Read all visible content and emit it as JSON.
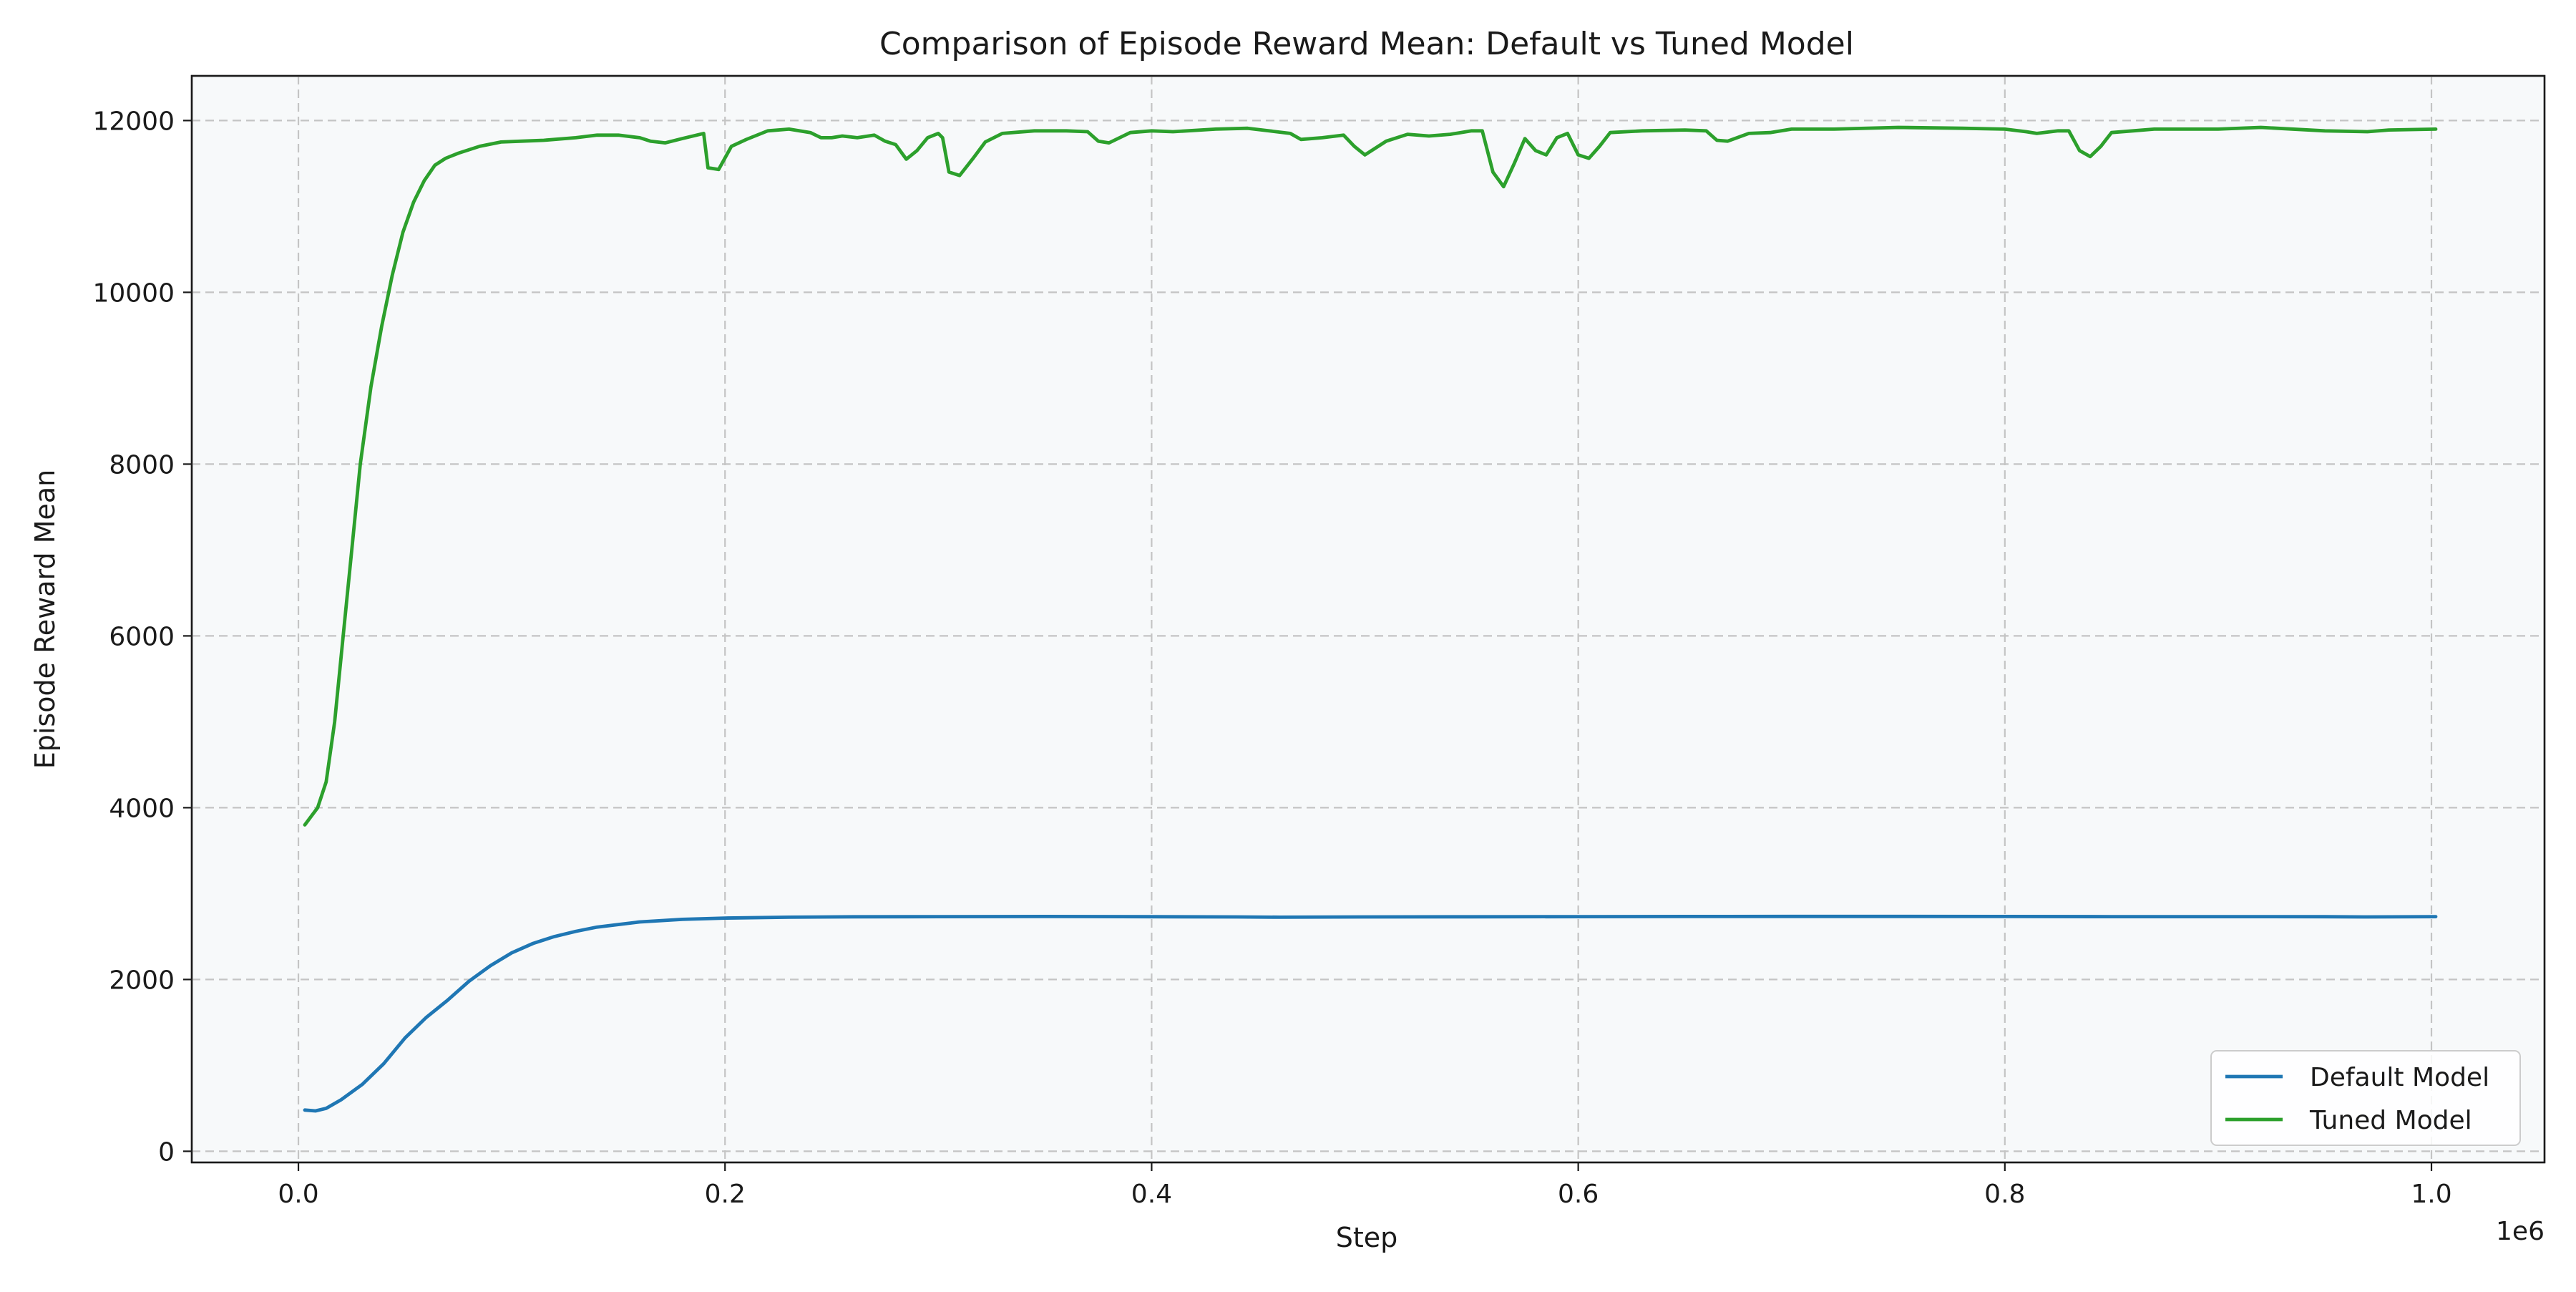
{
  "chart_data": {
    "type": "line",
    "title": "Comparison of Episode Reward Mean: Default vs Tuned Model",
    "xlabel": "Step",
    "ylabel": "Episode Reward Mean",
    "x_offset_label": "1e6",
    "xlim": [
      -0.05,
      1.053
    ],
    "ylim": [
      -130,
      12520
    ],
    "x_ticks": [
      0.0,
      0.2,
      0.4,
      0.6,
      0.8,
      1.0
    ],
    "x_tick_labels": [
      "0.0",
      "0.2",
      "0.4",
      "0.6",
      "0.8",
      "1.0"
    ],
    "y_ticks": [
      0,
      2000,
      4000,
      6000,
      8000,
      10000,
      12000
    ],
    "y_tick_labels": [
      "0",
      "2000",
      "4000",
      "6000",
      "8000",
      "10000",
      "12000"
    ],
    "grid": true,
    "legend_position": "bottom-right",
    "series": [
      {
        "name": "Default Model",
        "color": "#1f77b4",
        "points": [
          [
            0.003,
            480
          ],
          [
            0.008,
            470
          ],
          [
            0.013,
            500
          ],
          [
            0.02,
            600
          ],
          [
            0.03,
            780
          ],
          [
            0.04,
            1020
          ],
          [
            0.05,
            1320
          ],
          [
            0.06,
            1560
          ],
          [
            0.07,
            1760
          ],
          [
            0.08,
            1980
          ],
          [
            0.09,
            2160
          ],
          [
            0.1,
            2310
          ],
          [
            0.11,
            2420
          ],
          [
            0.12,
            2500
          ],
          [
            0.13,
            2560
          ],
          [
            0.14,
            2610
          ],
          [
            0.15,
            2640
          ],
          [
            0.16,
            2670
          ],
          [
            0.18,
            2700
          ],
          [
            0.2,
            2715
          ],
          [
            0.23,
            2725
          ],
          [
            0.26,
            2730
          ],
          [
            0.3,
            2732
          ],
          [
            0.35,
            2733
          ],
          [
            0.4,
            2731
          ],
          [
            0.44,
            2728
          ],
          [
            0.46,
            2725
          ],
          [
            0.5,
            2728
          ],
          [
            0.55,
            2730
          ],
          [
            0.6,
            2732
          ],
          [
            0.65,
            2733
          ],
          [
            0.7,
            2734
          ],
          [
            0.75,
            2734
          ],
          [
            0.8,
            2733
          ],
          [
            0.85,
            2732
          ],
          [
            0.9,
            2732
          ],
          [
            0.95,
            2731
          ],
          [
            0.97,
            2728
          ],
          [
            1.002,
            2732
          ]
        ]
      },
      {
        "name": "Tuned Model",
        "color": "#2ca02c",
        "points": [
          [
            0.003,
            3800
          ],
          [
            0.009,
            4000
          ],
          [
            0.013,
            4300
          ],
          [
            0.017,
            5000
          ],
          [
            0.021,
            6000
          ],
          [
            0.025,
            7000
          ],
          [
            0.029,
            8000
          ],
          [
            0.034,
            8900
          ],
          [
            0.039,
            9600
          ],
          [
            0.044,
            10200
          ],
          [
            0.049,
            10700
          ],
          [
            0.054,
            11050
          ],
          [
            0.059,
            11300
          ],
          [
            0.064,
            11480
          ],
          [
            0.069,
            11560
          ],
          [
            0.075,
            11620
          ],
          [
            0.085,
            11700
          ],
          [
            0.095,
            11750
          ],
          [
            0.105,
            11760
          ],
          [
            0.115,
            11770
          ],
          [
            0.13,
            11800
          ],
          [
            0.14,
            11830
          ],
          [
            0.15,
            11830
          ],
          [
            0.16,
            11800
          ],
          [
            0.165,
            11760
          ],
          [
            0.172,
            11740
          ],
          [
            0.18,
            11790
          ],
          [
            0.19,
            11850
          ],
          [
            0.192,
            11450
          ],
          [
            0.197,
            11430
          ],
          [
            0.203,
            11700
          ],
          [
            0.21,
            11780
          ],
          [
            0.22,
            11880
          ],
          [
            0.23,
            11900
          ],
          [
            0.24,
            11860
          ],
          [
            0.245,
            11800
          ],
          [
            0.25,
            11800
          ],
          [
            0.255,
            11820
          ],
          [
            0.262,
            11800
          ],
          [
            0.27,
            11830
          ],
          [
            0.275,
            11760
          ],
          [
            0.28,
            11720
          ],
          [
            0.285,
            11550
          ],
          [
            0.29,
            11650
          ],
          [
            0.295,
            11800
          ],
          [
            0.3,
            11850
          ],
          [
            0.302,
            11800
          ],
          [
            0.305,
            11400
          ],
          [
            0.31,
            11360
          ],
          [
            0.316,
            11550
          ],
          [
            0.322,
            11750
          ],
          [
            0.33,
            11850
          ],
          [
            0.345,
            11880
          ],
          [
            0.36,
            11880
          ],
          [
            0.37,
            11870
          ],
          [
            0.375,
            11760
          ],
          [
            0.38,
            11740
          ],
          [
            0.39,
            11860
          ],
          [
            0.4,
            11880
          ],
          [
            0.41,
            11870
          ],
          [
            0.43,
            11900
          ],
          [
            0.445,
            11910
          ],
          [
            0.455,
            11880
          ],
          [
            0.465,
            11850
          ],
          [
            0.47,
            11780
          ],
          [
            0.48,
            11800
          ],
          [
            0.49,
            11830
          ],
          [
            0.495,
            11700
          ],
          [
            0.5,
            11600
          ],
          [
            0.51,
            11760
          ],
          [
            0.52,
            11840
          ],
          [
            0.53,
            11820
          ],
          [
            0.54,
            11840
          ],
          [
            0.55,
            11880
          ],
          [
            0.555,
            11880
          ],
          [
            0.56,
            11400
          ],
          [
            0.565,
            11230
          ],
          [
            0.57,
            11500
          ],
          [
            0.575,
            11790
          ],
          [
            0.58,
            11650
          ],
          [
            0.585,
            11600
          ],
          [
            0.59,
            11800
          ],
          [
            0.595,
            11850
          ],
          [
            0.6,
            11600
          ],
          [
            0.605,
            11560
          ],
          [
            0.61,
            11700
          ],
          [
            0.615,
            11860
          ],
          [
            0.63,
            11880
          ],
          [
            0.65,
            11890
          ],
          [
            0.66,
            11880
          ],
          [
            0.665,
            11770
          ],
          [
            0.67,
            11760
          ],
          [
            0.68,
            11850
          ],
          [
            0.69,
            11860
          ],
          [
            0.7,
            11900
          ],
          [
            0.72,
            11900
          ],
          [
            0.75,
            11920
          ],
          [
            0.78,
            11910
          ],
          [
            0.8,
            11900
          ],
          [
            0.81,
            11870
          ],
          [
            0.815,
            11850
          ],
          [
            0.825,
            11880
          ],
          [
            0.83,
            11880
          ],
          [
            0.835,
            11650
          ],
          [
            0.84,
            11580
          ],
          [
            0.845,
            11700
          ],
          [
            0.85,
            11860
          ],
          [
            0.86,
            11880
          ],
          [
            0.87,
            11900
          ],
          [
            0.9,
            11900
          ],
          [
            0.92,
            11920
          ],
          [
            0.95,
            11880
          ],
          [
            0.97,
            11870
          ],
          [
            0.98,
            11890
          ],
          [
            1.002,
            11900
          ]
        ]
      }
    ]
  }
}
